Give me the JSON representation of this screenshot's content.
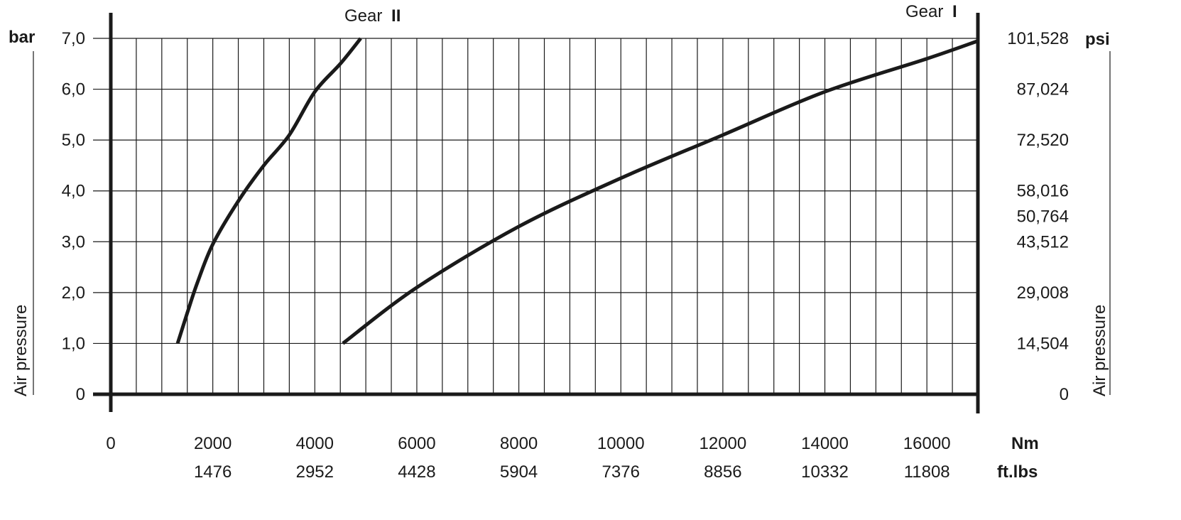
{
  "chart_data": {
    "type": "line",
    "title": "",
    "left_axis": {
      "unit": "bar",
      "label": "Air pressure",
      "ticks": [
        "0",
        "1,0",
        "2,0",
        "3,0",
        "4,0",
        "5,0",
        "6,0",
        "7,0"
      ],
      "tick_values": [
        0,
        1,
        2,
        3,
        4,
        5,
        6,
        7
      ],
      "range": [
        0,
        7
      ]
    },
    "right_axis": {
      "unit": "psi",
      "label": "Air pressure",
      "ticks": [
        "0",
        "14,504",
        "29,008",
        "43,512",
        "50,764",
        "58,016",
        "72,520",
        "87,024",
        "101,528"
      ],
      "tick_bar_values": [
        0,
        1,
        2,
        3,
        3.5,
        4,
        5,
        6,
        7
      ]
    },
    "x_axis": {
      "unit": "Nm",
      "ticks": [
        "0",
        "2000",
        "4000",
        "6000",
        "8000",
        "10000",
        "12000",
        "14000",
        "16000"
      ],
      "tick_values": [
        0,
        2000,
        4000,
        6000,
        8000,
        10000,
        12000,
        14000,
        16000
      ],
      "range": [
        0,
        17000
      ],
      "minor_step": 500
    },
    "x_axis_secondary": {
      "unit": "ft.lbs",
      "ticks": [
        "1476",
        "2952",
        "4428",
        "5904",
        "7376",
        "8856",
        "10332",
        "11808"
      ],
      "tick_nm_values": [
        2000,
        4000,
        6000,
        8000,
        10000,
        12000,
        14000,
        16000
      ]
    },
    "grid": true,
    "series": [
      {
        "name": "Gear",
        "marker": "II",
        "points": [
          [
            1310,
            1.0
          ],
          [
            1500,
            1.6
          ],
          [
            1700,
            2.2
          ],
          [
            2000,
            2.95
          ],
          [
            2500,
            3.8
          ],
          [
            3000,
            4.5
          ],
          [
            3500,
            5.1
          ],
          [
            4000,
            5.95
          ],
          [
            4500,
            6.5
          ],
          [
            4900,
            7.0
          ]
        ]
      },
      {
        "name": "Gear",
        "marker": "I",
        "points": [
          [
            4550,
            1.0
          ],
          [
            6000,
            2.1
          ],
          [
            8000,
            3.3
          ],
          [
            10000,
            4.25
          ],
          [
            12000,
            5.1
          ],
          [
            14000,
            5.95
          ],
          [
            16000,
            6.6
          ],
          [
            17000,
            6.95
          ]
        ]
      }
    ]
  }
}
